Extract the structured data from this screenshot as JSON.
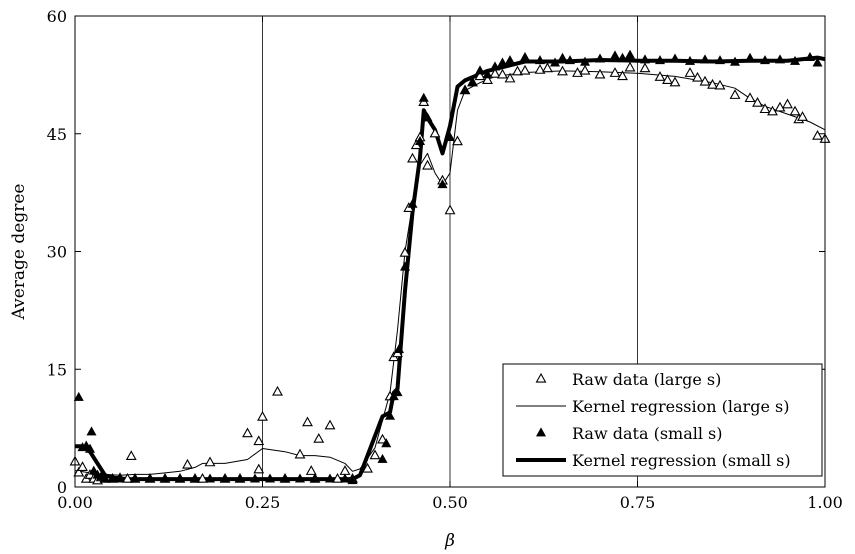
{
  "chart_data": {
    "type": "scatter",
    "title": "",
    "xlabel": "β",
    "ylabel": "Average degree",
    "xlim": [
      0,
      1
    ],
    "ylim": [
      0,
      60
    ],
    "xticks": [
      0,
      0.25,
      0.5,
      0.75,
      1
    ],
    "xtick_labels": [
      "0.00",
      "0.25",
      "0.50",
      "0.75",
      "1.00"
    ],
    "yticks": [
      0,
      15,
      30,
      45,
      60
    ],
    "ytick_labels": [
      "0",
      "15",
      "30",
      "45",
      "60"
    ],
    "vertical_lines": [
      0.25,
      0.5,
      0.75
    ],
    "legend_position": "lower-right",
    "series": [
      {
        "name": "Raw data (large s)",
        "kind": "scatter",
        "marker": "triangle-open",
        "points": [
          [
            0.0,
            3.2
          ],
          [
            0.005,
            1.8
          ],
          [
            0.01,
            2.5
          ],
          [
            0.015,
            1.0
          ],
          [
            0.02,
            1.5
          ],
          [
            0.025,
            1.0
          ],
          [
            0.03,
            0.8
          ],
          [
            0.035,
            1.2
          ],
          [
            0.04,
            1.0
          ],
          [
            0.05,
            1.0
          ],
          [
            0.06,
            1.1
          ],
          [
            0.07,
            1.0
          ],
          [
            0.075,
            3.9
          ],
          [
            0.08,
            1.0
          ],
          [
            0.1,
            1.0
          ],
          [
            0.12,
            1.0
          ],
          [
            0.14,
            1.0
          ],
          [
            0.15,
            2.8
          ],
          [
            0.16,
            1.0
          ],
          [
            0.17,
            1.0
          ],
          [
            0.18,
            3.1
          ],
          [
            0.2,
            1.0
          ],
          [
            0.22,
            1.0
          ],
          [
            0.23,
            6.8
          ],
          [
            0.245,
            5.8
          ],
          [
            0.25,
            8.9
          ],
          [
            0.245,
            2.2
          ],
          [
            0.27,
            12.1
          ],
          [
            0.28,
            1.0
          ],
          [
            0.3,
            4.1
          ],
          [
            0.31,
            8.2
          ],
          [
            0.315,
            2.0
          ],
          [
            0.32,
            1.0
          ],
          [
            0.325,
            6.1
          ],
          [
            0.34,
            7.8
          ],
          [
            0.35,
            1.0
          ],
          [
            0.36,
            2.0
          ],
          [
            0.37,
            1.0
          ],
          [
            0.39,
            2.3
          ],
          [
            0.4,
            4.0
          ],
          [
            0.41,
            6.0
          ],
          [
            0.42,
            11.5
          ],
          [
            0.425,
            16.5
          ],
          [
            0.43,
            17.0
          ],
          [
            0.44,
            29.8
          ],
          [
            0.445,
            35.5
          ],
          [
            0.45,
            41.8
          ],
          [
            0.455,
            43.5
          ],
          [
            0.46,
            44.5
          ],
          [
            0.465,
            49.0
          ],
          [
            0.47,
            40.9
          ],
          [
            0.48,
            45.0
          ],
          [
            0.49,
            39.0
          ],
          [
            0.5,
            35.2
          ],
          [
            0.51,
            44.0
          ],
          [
            0.52,
            50.5
          ],
          [
            0.53,
            51.5
          ],
          [
            0.54,
            52.3
          ],
          [
            0.55,
            51.8
          ],
          [
            0.56,
            52.6
          ],
          [
            0.57,
            52.5
          ],
          [
            0.58,
            52.0
          ],
          [
            0.59,
            52.9
          ],
          [
            0.6,
            53.0
          ],
          [
            0.62,
            53.1
          ],
          [
            0.63,
            53.3
          ],
          [
            0.65,
            52.9
          ],
          [
            0.67,
            52.7
          ],
          [
            0.68,
            53.0
          ],
          [
            0.7,
            52.5
          ],
          [
            0.72,
            52.7
          ],
          [
            0.73,
            52.3
          ],
          [
            0.74,
            53.4
          ],
          [
            0.76,
            53.3
          ],
          [
            0.78,
            52.2
          ],
          [
            0.79,
            51.8
          ],
          [
            0.8,
            51.5
          ],
          [
            0.82,
            52.7
          ],
          [
            0.83,
            52.1
          ],
          [
            0.84,
            51.6
          ],
          [
            0.85,
            51.2
          ],
          [
            0.86,
            51.1
          ],
          [
            0.88,
            49.9
          ],
          [
            0.9,
            49.5
          ],
          [
            0.91,
            48.9
          ],
          [
            0.92,
            48.1
          ],
          [
            0.93,
            47.8
          ],
          [
            0.94,
            48.3
          ],
          [
            0.95,
            48.7
          ],
          [
            0.96,
            47.8
          ],
          [
            0.965,
            46.8
          ],
          [
            0.97,
            47.1
          ],
          [
            0.99,
            44.7
          ],
          [
            1.0,
            44.3
          ]
        ]
      },
      {
        "name": "Kernel regression (large s)",
        "kind": "line",
        "style": "thin",
        "points": [
          [
            0.0,
            2.1
          ],
          [
            0.02,
            1.8
          ],
          [
            0.04,
            1.6
          ],
          [
            0.06,
            1.5
          ],
          [
            0.08,
            1.6
          ],
          [
            0.1,
            1.6
          ],
          [
            0.12,
            1.8
          ],
          [
            0.14,
            2.0
          ],
          [
            0.16,
            2.5
          ],
          [
            0.17,
            3.0
          ],
          [
            0.2,
            3.0
          ],
          [
            0.23,
            3.5
          ],
          [
            0.25,
            4.9
          ],
          [
            0.28,
            4.5
          ],
          [
            0.3,
            4.0
          ],
          [
            0.32,
            4.0
          ],
          [
            0.34,
            3.8
          ],
          [
            0.36,
            3.0
          ],
          [
            0.37,
            2.0
          ],
          [
            0.38,
            2.3
          ],
          [
            0.4,
            5.0
          ],
          [
            0.42,
            12.0
          ],
          [
            0.43,
            20.0
          ],
          [
            0.44,
            30.0
          ],
          [
            0.45,
            36.0
          ],
          [
            0.46,
            41.0
          ],
          [
            0.47,
            42.5
          ],
          [
            0.48,
            40.0
          ],
          [
            0.49,
            38.5
          ],
          [
            0.5,
            40.0
          ],
          [
            0.51,
            48.0
          ],
          [
            0.52,
            50.5
          ],
          [
            0.54,
            51.5
          ],
          [
            0.56,
            52.3
          ],
          [
            0.6,
            52.8
          ],
          [
            0.65,
            53.0
          ],
          [
            0.7,
            52.9
          ],
          [
            0.75,
            52.7
          ],
          [
            0.8,
            52.3
          ],
          [
            0.85,
            51.5
          ],
          [
            0.88,
            50.8
          ],
          [
            0.9,
            49.5
          ],
          [
            0.92,
            48.5
          ],
          [
            0.95,
            47.5
          ],
          [
            0.98,
            46.5
          ],
          [
            1.0,
            45.5
          ]
        ]
      },
      {
        "name": "Raw data (small s)",
        "kind": "scatter",
        "marker": "triangle-filled",
        "points": [
          [
            0.005,
            11.4
          ],
          [
            0.01,
            5.0
          ],
          [
            0.015,
            5.2
          ],
          [
            0.02,
            4.8
          ],
          [
            0.022,
            7.0
          ],
          [
            0.025,
            2.0
          ],
          [
            0.03,
            1.5
          ],
          [
            0.035,
            1.3
          ],
          [
            0.04,
            1.0
          ],
          [
            0.05,
            1.0
          ],
          [
            0.06,
            1.0
          ],
          [
            0.08,
            1.0
          ],
          [
            0.1,
            1.0
          ],
          [
            0.12,
            1.0
          ],
          [
            0.14,
            1.0
          ],
          [
            0.16,
            1.0
          ],
          [
            0.18,
            1.0
          ],
          [
            0.2,
            1.0
          ],
          [
            0.22,
            1.0
          ],
          [
            0.24,
            1.0
          ],
          [
            0.26,
            1.0
          ],
          [
            0.28,
            1.0
          ],
          [
            0.3,
            1.0
          ],
          [
            0.32,
            1.0
          ],
          [
            0.34,
            1.0
          ],
          [
            0.36,
            1.0
          ],
          [
            0.37,
            0.8
          ],
          [
            0.41,
            3.5
          ],
          [
            0.415,
            5.5
          ],
          [
            0.42,
            9.0
          ],
          [
            0.425,
            11.5
          ],
          [
            0.43,
            12.0
          ],
          [
            0.432,
            17.5
          ],
          [
            0.44,
            28.0
          ],
          [
            0.45,
            36.0
          ],
          [
            0.46,
            44.0
          ],
          [
            0.465,
            49.5
          ],
          [
            0.47,
            47.0
          ],
          [
            0.49,
            38.5
          ],
          [
            0.5,
            44.5
          ],
          [
            0.52,
            50.5
          ],
          [
            0.53,
            51.5
          ],
          [
            0.54,
            53.0
          ],
          [
            0.55,
            52.5
          ],
          [
            0.56,
            53.5
          ],
          [
            0.57,
            54.0
          ],
          [
            0.58,
            54.3
          ],
          [
            0.6,
            54.7
          ],
          [
            0.62,
            54.3
          ],
          [
            0.64,
            54.0
          ],
          [
            0.65,
            54.6
          ],
          [
            0.66,
            54.3
          ],
          [
            0.68,
            54.1
          ],
          [
            0.7,
            54.5
          ],
          [
            0.72,
            54.9
          ],
          [
            0.73,
            54.6
          ],
          [
            0.74,
            55.0
          ],
          [
            0.76,
            54.4
          ],
          [
            0.78,
            54.3
          ],
          [
            0.8,
            54.5
          ],
          [
            0.82,
            54.2
          ],
          [
            0.84,
            54.4
          ],
          [
            0.86,
            54.3
          ],
          [
            0.88,
            54.1
          ],
          [
            0.9,
            54.6
          ],
          [
            0.92,
            54.3
          ],
          [
            0.94,
            54.4
          ],
          [
            0.96,
            54.2
          ],
          [
            0.98,
            54.7
          ],
          [
            0.99,
            54.0
          ]
        ]
      },
      {
        "name": "Kernel regression (small s)",
        "kind": "line",
        "style": "thick",
        "points": [
          [
            0.0,
            5.2
          ],
          [
            0.01,
            5.2
          ],
          [
            0.02,
            4.5
          ],
          [
            0.03,
            3.0
          ],
          [
            0.04,
            1.5
          ],
          [
            0.05,
            1.2
          ],
          [
            0.07,
            1.0
          ],
          [
            0.1,
            1.0
          ],
          [
            0.2,
            1.0
          ],
          [
            0.3,
            1.0
          ],
          [
            0.37,
            1.0
          ],
          [
            0.38,
            1.5
          ],
          [
            0.39,
            4.0
          ],
          [
            0.4,
            6.5
          ],
          [
            0.41,
            9.0
          ],
          [
            0.42,
            9.5
          ],
          [
            0.425,
            12.0
          ],
          [
            0.43,
            12.5
          ],
          [
            0.44,
            25.0
          ],
          [
            0.45,
            35.0
          ],
          [
            0.46,
            42.0
          ],
          [
            0.465,
            48.0
          ],
          [
            0.47,
            47.0
          ],
          [
            0.48,
            45.5
          ],
          [
            0.49,
            42.5
          ],
          [
            0.5,
            46.0
          ],
          [
            0.51,
            51.0
          ],
          [
            0.52,
            51.8
          ],
          [
            0.55,
            53.0
          ],
          [
            0.6,
            54.2
          ],
          [
            0.65,
            54.2
          ],
          [
            0.7,
            54.4
          ],
          [
            0.75,
            54.3
          ],
          [
            0.8,
            54.3
          ],
          [
            0.85,
            54.2
          ],
          [
            0.9,
            54.3
          ],
          [
            0.95,
            54.3
          ],
          [
            0.99,
            54.7
          ],
          [
            1.0,
            54.5
          ]
        ]
      }
    ]
  }
}
